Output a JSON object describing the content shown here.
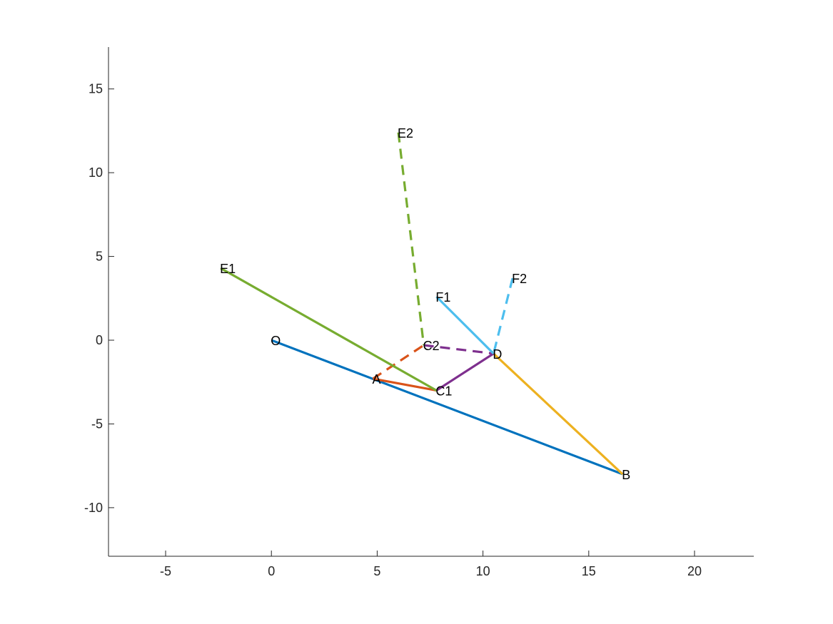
{
  "chart_data": {
    "type": "line",
    "title": "",
    "xlabel": "",
    "ylabel": "",
    "xlim": [
      -7.7,
      22.8
    ],
    "ylim": [
      -12.9,
      17.5
    ],
    "xticks": [
      -5,
      0,
      5,
      10,
      15,
      20
    ],
    "yticks": [
      -10,
      -5,
      0,
      5,
      10,
      15
    ],
    "xtick_labels": [
      "-5",
      "0",
      "5",
      "10",
      "15",
      "20"
    ],
    "ytick_labels": [
      "-10",
      "-5",
      "0",
      "5",
      "10",
      "15"
    ],
    "grid": false,
    "box": "left-bottom axes only",
    "points": [
      {
        "label": "O",
        "x": 0,
        "y": 0
      },
      {
        "label": "A",
        "x": 4.8,
        "y": -2.3
      },
      {
        "label": "B",
        "x": 16.6,
        "y": -8.0
      },
      {
        "label": "C1",
        "x": 7.8,
        "y": -3.0
      },
      {
        "label": "C2",
        "x": 7.2,
        "y": -0.3
      },
      {
        "label": "D",
        "x": 10.5,
        "y": -0.8
      },
      {
        "label": "E1",
        "x": -2.4,
        "y": 4.3
      },
      {
        "label": "E2",
        "x": 6.0,
        "y": 12.4
      },
      {
        "label": "F1",
        "x": 7.8,
        "y": 2.6
      },
      {
        "label": "F2",
        "x": 11.4,
        "y": 3.7
      }
    ],
    "series": [
      {
        "from": "O",
        "to": "B",
        "color": "#0072BD",
        "style": "solid"
      },
      {
        "from": "A",
        "to": "C1",
        "color": "#D95319",
        "style": "solid"
      },
      {
        "from": "A",
        "to": "C2",
        "color": "#D95319",
        "style": "dashed"
      },
      {
        "from": "D",
        "to": "B",
        "color": "#EDB120",
        "style": "solid"
      },
      {
        "from": "C1",
        "to": "D",
        "color": "#7E2F8E",
        "style": "solid"
      },
      {
        "from": "C2",
        "to": "D",
        "color": "#7E2F8E",
        "style": "dashed"
      },
      {
        "from": "E1",
        "to": "C1",
        "color": "#77AC30",
        "style": "solid"
      },
      {
        "from": "E2",
        "to": "C2",
        "color": "#77AC30",
        "style": "dashed"
      },
      {
        "from": "F1",
        "to": "D",
        "color": "#4DBEEE",
        "style": "solid"
      },
      {
        "from": "F2",
        "to": "D",
        "color": "#4DBEEE",
        "style": "dashed"
      }
    ]
  }
}
